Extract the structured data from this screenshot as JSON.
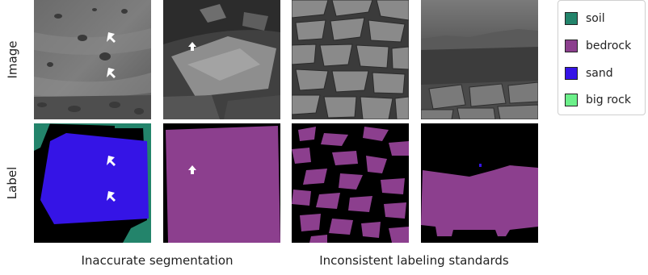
{
  "row_labels": {
    "image": "Image",
    "label": "Label"
  },
  "captions": {
    "left": "Inaccurate segmentation",
    "right": "Inconsistent labeling standards"
  },
  "legend": {
    "items": [
      {
        "label": "soil",
        "color": "#23846b"
      },
      {
        "label": "bedrock",
        "color": "#8c3f8e"
      },
      {
        "label": "sand",
        "color": "#3514e6"
      },
      {
        "label": "big rock",
        "color": "#6cf08a"
      }
    ]
  },
  "label_colors": {
    "background": "#000000",
    "soil": "#23846b",
    "bedrock": "#8c3f8e",
    "sand": "#3514e6",
    "arrow": "#ffffff"
  }
}
